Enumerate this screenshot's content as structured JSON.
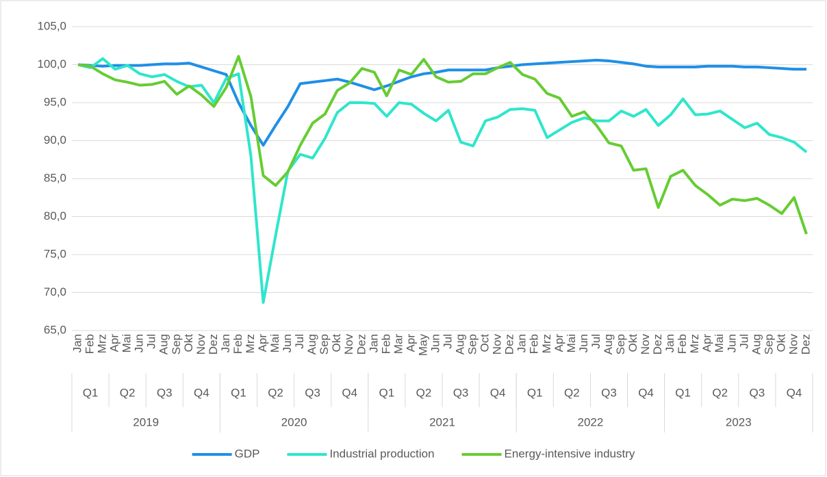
{
  "chart_data": {
    "type": "line",
    "categories": [
      "Jan",
      "Feb",
      "Mrz",
      "Apr",
      "Mai",
      "Jun",
      "Jul",
      "Aug",
      "Sep",
      "Okt",
      "Nov",
      "Dez",
      "Jan",
      "Feb",
      "Mrz",
      "Apr",
      "Mai",
      "Jun",
      "Jul",
      "Aug",
      "Sep",
      "Okt",
      "Nov",
      "Dez",
      "Jan",
      "Feb",
      "Mar",
      "Apr",
      "May",
      "Jun",
      "Jul",
      "Aug",
      "Sep",
      "Oct",
      "Nov",
      "Dez",
      "Jan",
      "Feb",
      "Mrz",
      "Apr",
      "Mai",
      "Jun",
      "Jul",
      "Aug",
      "Sep",
      "Okt",
      "Nov",
      "Dez",
      "Jan",
      "Feb",
      "Mrz",
      "Apr",
      "Mai",
      "Jun",
      "Jul",
      "Aug",
      "Sep",
      "Okt",
      "Nov",
      "Dez"
    ],
    "quarters": [
      "Q1",
      "Q2",
      "Q3",
      "Q4",
      "Q1",
      "Q2",
      "Q3",
      "Q4",
      "Q1",
      "Q2",
      "Q3",
      "Q4",
      "Q1",
      "Q2",
      "Q3",
      "Q4",
      "Q1",
      "Q2",
      "Q3",
      "Q4"
    ],
    "years": [
      "2019",
      "2020",
      "2021",
      "2022",
      "2023"
    ],
    "series": [
      {
        "name": "GDP",
        "color": "#1f8fe6",
        "values": [
          100.0,
          99.9,
          99.8,
          99.9,
          99.9,
          99.9,
          100.0,
          100.1,
          100.1,
          100.2,
          99.7,
          99.2,
          98.7,
          95.0,
          92.0,
          89.4,
          92.0,
          94.5,
          97.5,
          97.7,
          97.9,
          98.1,
          97.7,
          97.2,
          96.7,
          97.2,
          97.8,
          98.4,
          98.8,
          99.0,
          99.3,
          99.3,
          99.3,
          99.3,
          99.6,
          99.8,
          100.0,
          100.1,
          100.2,
          100.3,
          100.4,
          100.5,
          100.6,
          100.5,
          100.3,
          100.1,
          99.8,
          99.7,
          99.7,
          99.7,
          99.7,
          99.8,
          99.8,
          99.8,
          99.7,
          99.7,
          99.6,
          99.5,
          99.4,
          99.4
        ]
      },
      {
        "name": "Industrial production",
        "color": "#2ee6cc",
        "values": [
          100.0,
          99.6,
          100.8,
          99.4,
          99.9,
          98.8,
          98.4,
          98.7,
          97.8,
          97.1,
          97.3,
          95.0,
          98.2,
          98.8,
          88.0,
          68.7,
          77.5,
          86.0,
          88.2,
          87.7,
          90.3,
          93.7,
          95.0,
          95.0,
          94.9,
          93.2,
          95.0,
          94.8,
          93.6,
          92.6,
          94.0,
          89.8,
          89.3,
          92.6,
          93.1,
          94.1,
          94.2,
          94.0,
          90.4,
          91.4,
          92.4,
          93.0,
          92.6,
          92.6,
          93.9,
          93.2,
          94.1,
          92.0,
          93.4,
          95.5,
          93.4,
          93.5,
          93.9,
          92.8,
          91.7,
          92.3,
          90.8,
          90.4,
          89.8,
          88.5
        ]
      },
      {
        "name": "Energy-intensive industry",
        "color": "#66cc33",
        "values": [
          100.0,
          99.8,
          98.8,
          98.0,
          97.7,
          97.3,
          97.4,
          97.8,
          96.1,
          97.2,
          96.0,
          94.5,
          97.0,
          101.1,
          95.8,
          85.4,
          84.1,
          85.9,
          89.4,
          92.3,
          93.5,
          96.6,
          97.6,
          99.5,
          99.0,
          95.9,
          99.3,
          98.7,
          100.7,
          98.4,
          97.7,
          97.8,
          98.8,
          98.8,
          99.6,
          100.3,
          98.7,
          98.1,
          96.2,
          95.6,
          93.2,
          93.8,
          92.0,
          89.7,
          89.3,
          86.1,
          86.3,
          81.2,
          85.3,
          86.1,
          84.1,
          82.9,
          81.5,
          82.3,
          82.1,
          82.4,
          81.5,
          80.4,
          82.5,
          77.7
        ]
      }
    ],
    "ylim": [
      65,
      105
    ],
    "yticks": [
      {
        "value": 65,
        "label": "65,0"
      },
      {
        "value": 70,
        "label": "70,0"
      },
      {
        "value": 75,
        "label": "75,0"
      },
      {
        "value": 80,
        "label": "80,0"
      },
      {
        "value": 85,
        "label": "85,0"
      },
      {
        "value": 90,
        "label": "90,0"
      },
      {
        "value": 95,
        "label": "95,0"
      },
      {
        "value": 100,
        "label": "100,0"
      },
      {
        "value": 105,
        "label": "105,0"
      }
    ],
    "grid": true,
    "legend": "bottom"
  }
}
